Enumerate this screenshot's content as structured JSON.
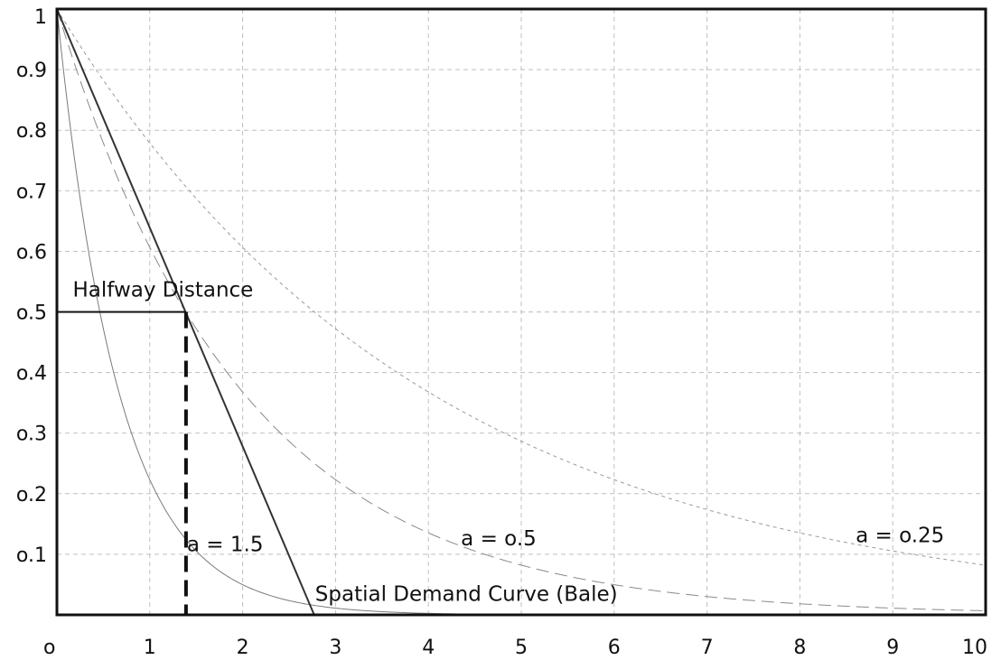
{
  "chart_data": {
    "type": "line",
    "xlim": [
      0,
      10
    ],
    "ylim": [
      0,
      1
    ],
    "x_ticks": [
      "o",
      "1",
      "2",
      "3",
      "4",
      "5",
      "6",
      "7",
      "8",
      "9",
      "10"
    ],
    "y_ticks": [
      "o.1",
      "o.2",
      "o.3",
      "o.4",
      "o.5",
      "o.6",
      "o.7",
      "o.8",
      "o.9",
      "1"
    ],
    "grid": true,
    "series": [
      {
        "name": "a = 1.5",
        "function": "exp(-a*x)",
        "a": 1.5,
        "style": "solid-thin",
        "color": "#7a7a7a"
      },
      {
        "name": "a = 0.5",
        "function": "exp(-a*x)",
        "a": 0.5,
        "style": "long-dash",
        "color": "#8a8a8a"
      },
      {
        "name": "a = 0.25",
        "function": "exp(-a*x)",
        "a": 0.25,
        "style": "short-dash",
        "color": "#9a9a9a"
      },
      {
        "name": "Spatial Demand Curve (Bale)",
        "x": [
          0,
          2.77
        ],
        "y": [
          1,
          0
        ],
        "style": "solid",
        "color": "#333333"
      }
    ],
    "halfway": {
      "x": 1.39,
      "y": 0.5,
      "label": "Halfway Distance"
    },
    "labels": {
      "a15": "a = 1.5",
      "a05": "a = o.5",
      "a025": "a = o.25",
      "bale": "Spatial Demand Curve (Bale)"
    }
  }
}
